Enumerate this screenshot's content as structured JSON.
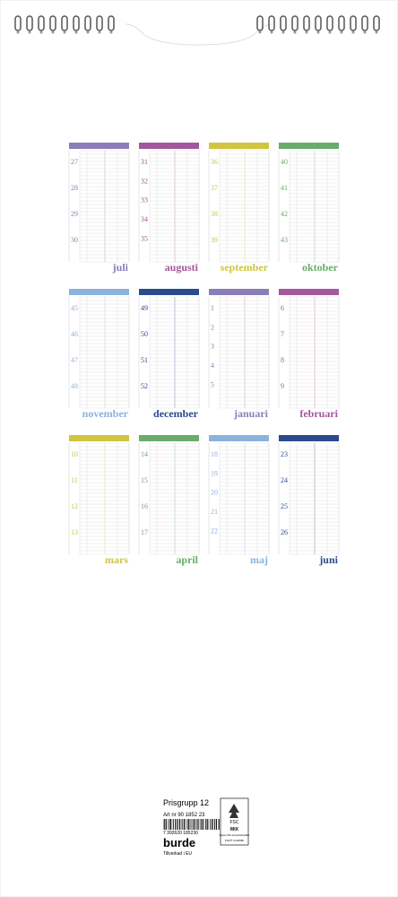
{
  "months": [
    {
      "name": "juli",
      "color": "#8b7db8",
      "weeks": [
        27,
        28,
        29,
        30
      ]
    },
    {
      "name": "augusti",
      "color": "#a4579c",
      "weeks": [
        31,
        32,
        33,
        34,
        35
      ]
    },
    {
      "name": "september",
      "color": "#cfc53f",
      "weeks": [
        36,
        37,
        38,
        39
      ]
    },
    {
      "name": "oktober",
      "color": "#6bab6b",
      "weeks": [
        40,
        41,
        42,
        43
      ]
    },
    {
      "name": "november",
      "color": "#8cb2de",
      "weeks": [
        45,
        46,
        47,
        48
      ]
    },
    {
      "name": "december",
      "color": "#2c4b8c",
      "weeks": [
        49,
        50,
        51,
        52
      ]
    },
    {
      "name": "januari",
      "color": "#8b7db8",
      "weeks": [
        1,
        2,
        3,
        4,
        5
      ]
    },
    {
      "name": "februari",
      "color": "#a4579c",
      "weeks": [
        6,
        7,
        8,
        9
      ]
    },
    {
      "name": "mars",
      "color": "#cfc53f",
      "weeks": [
        10,
        11,
        12,
        13
      ]
    },
    {
      "name": "april",
      "color": "#6bab6b",
      "weeks": [
        14,
        15,
        16,
        17
      ]
    },
    {
      "name": "maj",
      "color": "#8cb2de",
      "weeks": [
        18,
        19,
        20,
        21,
        22
      ]
    },
    {
      "name": "juni",
      "color": "#2c4b8c",
      "weeks": [
        23,
        24,
        25,
        26
      ]
    }
  ],
  "label": {
    "price_group": "Prisgrupp 12",
    "article": "Art nr 90 1852 23",
    "barcode": "7 392620 185230",
    "brand": "burde",
    "made_in": "Tillverkad i EU",
    "fsc": {
      "name": "FSC",
      "mix": "MIX",
      "text": "Papper från ansvarsfulla källor",
      "code": "FSC® C102660"
    }
  }
}
